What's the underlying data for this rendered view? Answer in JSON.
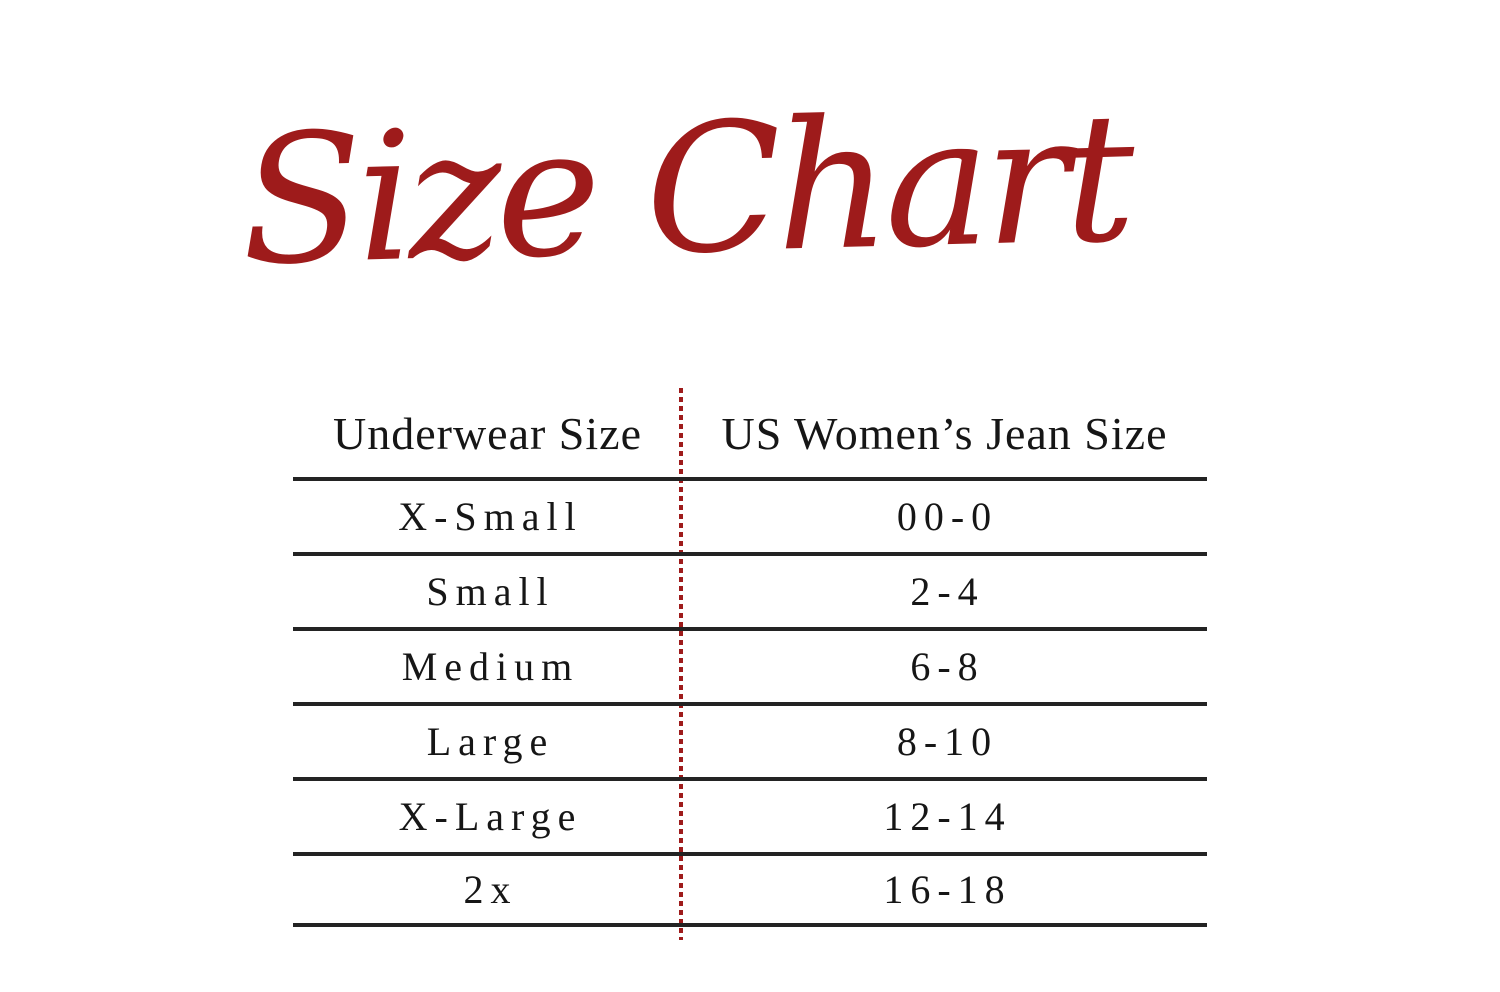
{
  "colors": {
    "background": "#ffffff",
    "accent_red": "#9e1b1b",
    "text": "#161616",
    "rule_black": "#232323"
  },
  "title": {
    "text": "Size Chart"
  },
  "chart_data": {
    "type": "table",
    "title": "Size Chart",
    "columns": [
      "Underwear Size",
      "US Women’s Jean Size"
    ],
    "rows": [
      [
        "X-Small",
        "00-0"
      ],
      [
        "Small",
        "2-4"
      ],
      [
        "Medium",
        "6-8"
      ],
      [
        "Large",
        "8-10"
      ],
      [
        "X-Large",
        "12-14"
      ],
      [
        "2x",
        "16-18"
      ]
    ],
    "layout": {
      "column_divider": "dotted-red-vertical-line",
      "row_separators": "solid-black-horizontal-rules",
      "alignment": "center"
    }
  }
}
